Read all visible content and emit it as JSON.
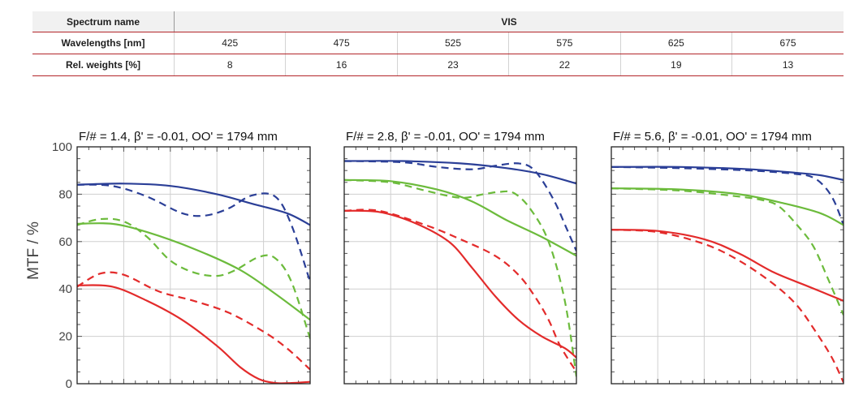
{
  "table": {
    "spectrum_label": "Spectrum name",
    "spectrum_value": "VIS",
    "wavelength_label": "Wavelengths [nm]",
    "wavelengths": [
      "425",
      "475",
      "525",
      "575",
      "625",
      "675"
    ],
    "weight_label": "Rel. weights [%]",
    "weights": [
      "8",
      "16",
      "23",
      "22",
      "19",
      "13"
    ]
  },
  "chart_data": [
    {
      "type": "line",
      "title": "F/# = 1.4, β' = -0.01, OO' = 1794 mm",
      "ylabel": "MTF / %",
      "xlabel": "",
      "ylim": [
        0,
        100
      ],
      "xlim": [
        0,
        1
      ],
      "yticks": [
        "0",
        "20",
        "40",
        "60",
        "80",
        "100"
      ],
      "grid": true,
      "series": [
        {
          "color": "#2b3f97",
          "dash": false,
          "x": [
            0,
            0.2,
            0.4,
            0.6,
            0.75,
            0.9,
            1.0
          ],
          "y": [
            84,
            84.5,
            83.5,
            80,
            76,
            72,
            67
          ]
        },
        {
          "color": "#2b3f97",
          "dash": true,
          "x": [
            0,
            0.15,
            0.3,
            0.45,
            0.55,
            0.65,
            0.75,
            0.85,
            0.92,
            1.0
          ],
          "y": [
            84,
            83.5,
            79,
            72,
            71,
            74,
            79.5,
            79,
            67,
            43
          ]
        },
        {
          "color": "#6cbb3c",
          "dash": false,
          "x": [
            0,
            0.15,
            0.3,
            0.5,
            0.7,
            0.85,
            1.0
          ],
          "y": [
            67.5,
            67.5,
            64,
            57,
            48,
            38,
            27
          ]
        },
        {
          "color": "#6cbb3c",
          "dash": true,
          "x": [
            0,
            0.1,
            0.2,
            0.3,
            0.4,
            0.5,
            0.6,
            0.68,
            0.78,
            0.85,
            0.92,
            1.0
          ],
          "y": [
            67,
            69.5,
            68.5,
            62,
            52,
            47,
            45.5,
            48,
            53.5,
            53,
            43,
            19
          ]
        },
        {
          "color": "#e32b2b",
          "dash": false,
          "x": [
            0,
            0.15,
            0.3,
            0.45,
            0.6,
            0.7,
            0.78,
            0.85,
            0.92,
            1.0
          ],
          "y": [
            41.5,
            41,
            35,
            27,
            16,
            7,
            2,
            0.3,
            0.3,
            0.8
          ]
        },
        {
          "color": "#e32b2b",
          "dash": true,
          "x": [
            0,
            0.1,
            0.2,
            0.35,
            0.5,
            0.65,
            0.8,
            0.9,
            1.0
          ],
          "y": [
            41,
            46.5,
            46,
            39,
            35,
            30,
            22,
            15,
            6
          ]
        }
      ]
    },
    {
      "type": "line",
      "title": "F/# = 2.8, β' = -0.01, OO' = 1794 mm",
      "ylabel": "",
      "xlabel": "",
      "ylim": [
        0,
        100
      ],
      "xlim": [
        0,
        1
      ],
      "yticks": [
        "0",
        "20",
        "40",
        "60",
        "80",
        "100"
      ],
      "grid": true,
      "series": [
        {
          "color": "#2b3f97",
          "dash": false,
          "x": [
            0,
            0.25,
            0.5,
            0.7,
            0.85,
            1.0
          ],
          "y": [
            94,
            94,
            93,
            91,
            88.5,
            84.5
          ]
        },
        {
          "color": "#2b3f97",
          "dash": true,
          "x": [
            0,
            0.25,
            0.4,
            0.55,
            0.65,
            0.75,
            0.82,
            0.9,
            0.96,
            1.0
          ],
          "y": [
            94,
            93.5,
            91.5,
            90.5,
            92,
            93,
            90,
            78,
            65,
            56
          ]
        },
        {
          "color": "#6cbb3c",
          "dash": false,
          "x": [
            0,
            0.2,
            0.4,
            0.55,
            0.7,
            0.85,
            1.0
          ],
          "y": [
            86,
            85.5,
            82,
            77,
            69,
            62,
            54
          ]
        },
        {
          "color": "#6cbb3c",
          "dash": true,
          "x": [
            0,
            0.2,
            0.35,
            0.5,
            0.6,
            0.67,
            0.73,
            0.8,
            0.88,
            0.95,
            1.0
          ],
          "y": [
            86,
            85,
            81.5,
            78.5,
            80,
            81,
            80.5,
            74,
            60,
            35,
            3
          ]
        },
        {
          "color": "#e32b2b",
          "dash": false,
          "x": [
            0,
            0.15,
            0.3,
            0.45,
            0.55,
            0.65,
            0.75,
            0.85,
            0.95,
            1.0
          ],
          "y": [
            73,
            72.5,
            68,
            60,
            49,
            37,
            27,
            20,
            15,
            11
          ]
        },
        {
          "color": "#e32b2b",
          "dash": true,
          "x": [
            0,
            0.15,
            0.35,
            0.5,
            0.65,
            0.75,
            0.82,
            0.88,
            0.93,
            1.0
          ],
          "y": [
            73,
            73,
            67,
            61,
            54,
            46,
            37,
            27,
            16,
            5
          ]
        }
      ]
    },
    {
      "type": "line",
      "title": "F/# = 5.6, β' = -0.01, OO' = 1794 mm",
      "ylabel": "",
      "xlabel": "",
      "ylim": [
        0,
        100
      ],
      "xlim": [
        0,
        1
      ],
      "yticks": [
        "0",
        "20",
        "40",
        "60",
        "80",
        "100"
      ],
      "grid": true,
      "series": [
        {
          "color": "#2b3f97",
          "dash": false,
          "x": [
            0,
            0.3,
            0.6,
            0.8,
            0.9,
            1.0
          ],
          "y": [
            91.5,
            91.5,
            90.5,
            89,
            88,
            86
          ]
        },
        {
          "color": "#2b3f97",
          "dash": true,
          "x": [
            0,
            0.3,
            0.6,
            0.8,
            0.87,
            0.92,
            0.96,
            1.0
          ],
          "y": [
            91.5,
            91,
            90,
            88.5,
            87,
            83,
            77,
            67
          ]
        },
        {
          "color": "#6cbb3c",
          "dash": false,
          "x": [
            0,
            0.3,
            0.55,
            0.75,
            0.9,
            1.0
          ],
          "y": [
            82.5,
            82,
            80,
            76,
            72,
            67
          ]
        },
        {
          "color": "#6cbb3c",
          "dash": true,
          "x": [
            0,
            0.3,
            0.55,
            0.65,
            0.72,
            0.8,
            0.87,
            0.93,
            1.0
          ],
          "y": [
            82.5,
            81.5,
            79,
            77.5,
            75,
            67,
            58,
            45,
            29
          ]
        },
        {
          "color": "#e32b2b",
          "dash": false,
          "x": [
            0,
            0.2,
            0.4,
            0.55,
            0.7,
            0.85,
            1.0
          ],
          "y": [
            65,
            64.5,
            61,
            55,
            47,
            41,
            35
          ]
        },
        {
          "color": "#e32b2b",
          "dash": true,
          "x": [
            0,
            0.2,
            0.4,
            0.55,
            0.7,
            0.8,
            0.88,
            0.95,
            1.0
          ],
          "y": [
            65,
            64,
            59,
            52,
            42,
            33,
            22,
            11,
            0.5
          ]
        }
      ]
    }
  ]
}
